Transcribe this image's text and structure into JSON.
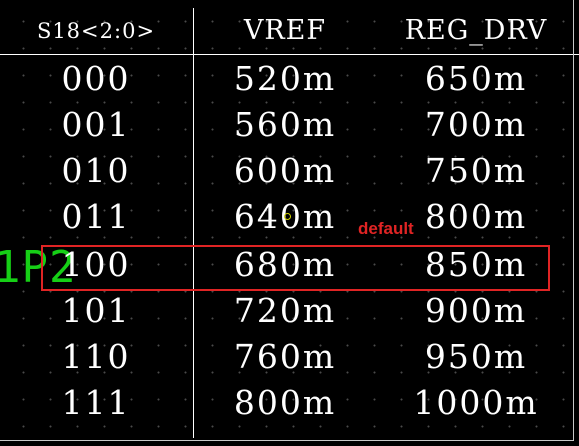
{
  "table": {
    "headers": [
      "S18<2:0>",
      "VREF",
      "REG_DRV"
    ],
    "rows": [
      [
        "000",
        "520m",
        "650m"
      ],
      [
        "001",
        "560m",
        "700m"
      ],
      [
        "010",
        "600m",
        "750m"
      ],
      [
        "011",
        "640m",
        "800m"
      ],
      [
        "100",
        "680m",
        "850m"
      ],
      [
        "101",
        "720m",
        "900m"
      ],
      [
        "110",
        "760m",
        "950m"
      ],
      [
        "111",
        "800m",
        "1000m"
      ]
    ],
    "highlighted_row_index": 4
  },
  "annotation": {
    "text": "default"
  },
  "background_fragment": {
    "text": "1P2"
  },
  "colors": {
    "background": "#000000",
    "text": "#ffffff",
    "highlight": "#e02424",
    "background_fragment": "#19e619"
  }
}
